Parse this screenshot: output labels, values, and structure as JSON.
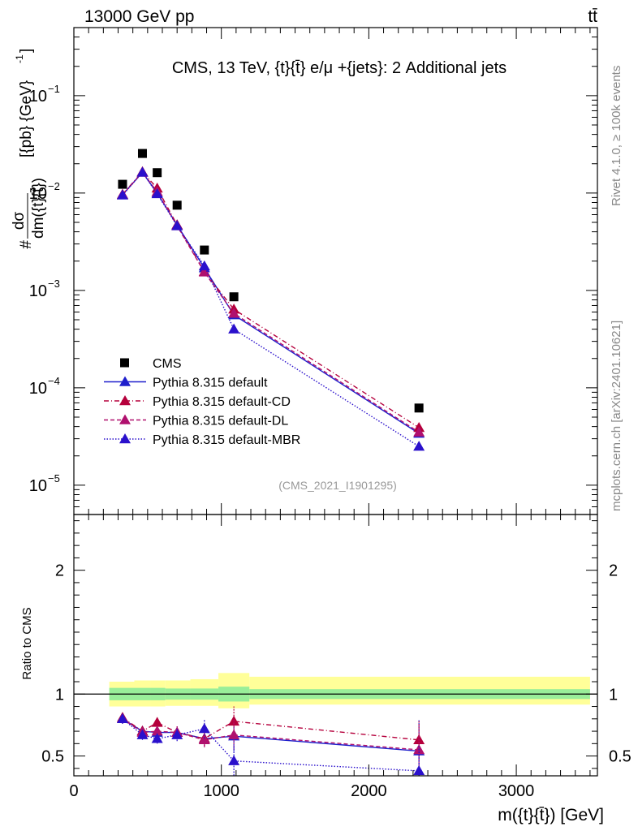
{
  "header": {
    "energy_label": "13000 GeV pp",
    "process_label": "tt̄",
    "side_rivet": "Rivet 4.1.0, ≥ 100k events",
    "side_mcplots": "mcplots.cern.ch [arXiv:2401.10621]"
  },
  "chart_data": [
    {
      "type": "line",
      "panel": "main",
      "title": "CMS, 13 TeV, {t}{t̄} e/μ +{jets}: 2 Additional jets",
      "analysis_id": "(CMS_2021_I1901295)",
      "ylabel_prefix": "#",
      "ylabel_numerator": "dσ",
      "ylabel_denominator": "dm({t}{t̄})",
      "ylabel_suffix": "[{pb} {GeV}",
      "ylabel_exponent": "-1",
      "ylabel_close": "]",
      "yscale": "log",
      "ylim": [
        5e-06,
        0.5
      ],
      "xlim": [
        0,
        3550
      ],
      "yticks": [
        {
          "value": 1e-05,
          "base": "10",
          "exp": "−5"
        },
        {
          "value": 0.0001,
          "base": "10",
          "exp": "−4"
        },
        {
          "value": 0.001,
          "base": "10",
          "exp": "−3"
        },
        {
          "value": 0.01,
          "base": "10",
          "exp": "−2"
        },
        {
          "value": 0.1,
          "base": "10",
          "exp": "−1"
        }
      ],
      "x": [
        330,
        465,
        565,
        700,
        885,
        1085,
        2340
      ],
      "series": [
        {
          "name": "CMS",
          "key": "data",
          "color": "#000000",
          "dash": "",
          "marker": "square",
          "values": [
            0.0123,
            0.0255,
            0.0162,
            0.0075,
            0.0026,
            0.00086,
            6.2e-05
          ]
        },
        {
          "name": "Pythia 8.315 default",
          "key": "default",
          "color": "#1f1fcc",
          "dash": "",
          "marker": "triangle",
          "values": [
            0.0096,
            0.0163,
            0.01,
            0.0047,
            0.0017,
            0.00056,
            3.4e-05
          ]
        },
        {
          "name": "Pythia 8.315 default-CD",
          "key": "cd",
          "color": "#b5003c",
          "dash": "6,3,1,3",
          "marker": "triangle",
          "values": [
            0.0097,
            0.0165,
            0.0112,
            0.0047,
            0.00156,
            0.00064,
            3.9e-05
          ]
        },
        {
          "name": "Pythia 8.315 default-DL",
          "key": "dl",
          "color": "#b0106e",
          "dash": "5,3",
          "marker": "triangle",
          "values": [
            0.0096,
            0.0163,
            0.0103,
            0.0046,
            0.00154,
            0.00058,
            3.5e-05
          ]
        },
        {
          "name": "Pythia 8.315 default-MBR",
          "key": "mbr",
          "color": "#2a10cc",
          "dash": "1.5,2",
          "marker": "triangle",
          "values": [
            0.0095,
            0.0163,
            0.0098,
            0.0046,
            0.00178,
            0.0004,
            2.5e-05
          ]
        }
      ]
    },
    {
      "type": "line",
      "panel": "ratio",
      "ylabel": "Ratio to CMS",
      "xlabel": "m({t}{t̄}) [GeV]",
      "ylim": [
        0.34,
        2.45
      ],
      "xlim": [
        0,
        3550
      ],
      "yticks": [
        0.5,
        1,
        2
      ],
      "ytick_labels": [
        "0.5",
        "1",
        "2"
      ],
      "xticks": [
        0,
        1000,
        2000,
        3000
      ],
      "xtick_labels": [
        "0",
        "1000",
        "2000",
        "3000"
      ],
      "bands": [
        {
          "x0": 240,
          "x1": 410,
          "green": [
            0.95,
            1.05
          ],
          "yellow": [
            0.9,
            1.1
          ]
        },
        {
          "x0": 410,
          "x1": 520,
          "green": [
            0.95,
            1.05
          ],
          "yellow": [
            0.9,
            1.11
          ]
        },
        {
          "x0": 520,
          "x1": 620,
          "green": [
            0.95,
            1.05
          ],
          "yellow": [
            0.9,
            1.11
          ]
        },
        {
          "x0": 620,
          "x1": 790,
          "green": [
            0.955,
            1.045
          ],
          "yellow": [
            0.905,
            1.11
          ]
        },
        {
          "x0": 790,
          "x1": 980,
          "green": [
            0.955,
            1.045
          ],
          "yellow": [
            0.905,
            1.12
          ]
        },
        {
          "x0": 980,
          "x1": 1190,
          "green": [
            0.94,
            1.06
          ],
          "yellow": [
            0.885,
            1.17
          ]
        },
        {
          "x0": 1190,
          "x1": 3500,
          "green": [
            0.96,
            1.04
          ],
          "yellow": [
            0.915,
            1.14
          ]
        }
      ],
      "x": [
        330,
        465,
        565,
        700,
        885,
        1085,
        2340
      ],
      "series": [
        {
          "key": "default",
          "color": "#1f1fcc",
          "dash": "",
          "values": [
            0.8,
            0.7,
            0.69,
            0.69,
            0.64,
            0.66,
            0.54
          ],
          "errors": [
            0.04,
            0.04,
            0.04,
            0.05,
            0.06,
            0.12,
            0.25
          ]
        },
        {
          "key": "cd",
          "color": "#b5003c",
          "dash": "6,3,1,3",
          "values": [
            0.81,
            0.7,
            0.77,
            0.69,
            0.64,
            0.78,
            0.63
          ],
          "errors": [
            0.04,
            0.04,
            0.04,
            0.05,
            0.06,
            0.12,
            0.16
          ]
        },
        {
          "key": "dl",
          "color": "#b0106e",
          "dash": "5,3",
          "values": [
            0.8,
            0.69,
            0.7,
            0.69,
            0.63,
            0.67,
            0.55
          ],
          "errors": [
            0.04,
            0.04,
            0.04,
            0.05,
            0.06,
            0.12,
            0.2
          ]
        },
        {
          "key": "mbr",
          "color": "#2a10cc",
          "dash": "1.5,2",
          "values": [
            0.8,
            0.67,
            0.64,
            0.67,
            0.72,
            0.46,
            0.38
          ],
          "errors": [
            0.04,
            0.04,
            0.04,
            0.05,
            0.08,
            0.12,
            0.2
          ]
        }
      ]
    }
  ]
}
